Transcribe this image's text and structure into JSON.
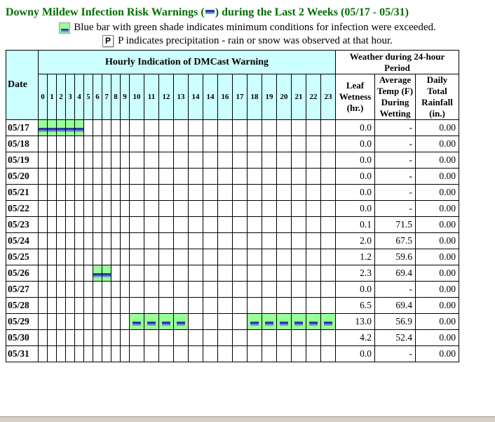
{
  "title": {
    "prefix": "Downy Mildew Infection Risk Warnings (",
    "suffix": ") during the Last 2 Weeks (05/17 - 05/31)"
  },
  "legend": [
    {
      "icon": "warning-cell",
      "text": "Blue bar with green shade indicates minimum conditions for infection were exceeded."
    },
    {
      "icon": "P",
      "text": "P indicates precipitation - rain or snow was observed at that hour."
    }
  ],
  "colors": {
    "title_green": "#007000",
    "header_cyan": "#ccffff",
    "warning_green": "#99ff99",
    "bar_blue": "#26409e"
  },
  "table": {
    "headers": {
      "date": "Date",
      "hourly": "Hourly Indication of DMCast Warning",
      "weather": "Weather during 24-hour Period",
      "leaf_wetness": "Leaf Wetness (hr.)",
      "avg_temp": "Average Temp (F) During Wetting",
      "rainfall": "Daily Total Rainfall (in.)"
    },
    "hours": [
      "0",
      "1",
      "2",
      "3",
      "4",
      "5",
      "6",
      "7",
      "8",
      "9",
      "10",
      "11",
      "12",
      "13",
      "14",
      "14",
      "16",
      "17",
      "18",
      "19",
      "20",
      "21",
      "22",
      "23"
    ],
    "rows": [
      {
        "date": "05/17",
        "warnings": [
          0,
          1,
          2,
          3,
          4
        ],
        "leaf_wetness": "0.0",
        "avg_temp": "-",
        "rainfall": "0.00"
      },
      {
        "date": "05/18",
        "warnings": [],
        "leaf_wetness": "0.0",
        "avg_temp": "-",
        "rainfall": "0.00"
      },
      {
        "date": "05/19",
        "warnings": [],
        "leaf_wetness": "0.0",
        "avg_temp": "-",
        "rainfall": "0.00"
      },
      {
        "date": "05/20",
        "warnings": [],
        "leaf_wetness": "0.0",
        "avg_temp": "-",
        "rainfall": "0.00"
      },
      {
        "date": "05/21",
        "warnings": [],
        "leaf_wetness": "0.0",
        "avg_temp": "-",
        "rainfall": "0.00"
      },
      {
        "date": "05/22",
        "warnings": [],
        "leaf_wetness": "0.0",
        "avg_temp": "-",
        "rainfall": "0.00"
      },
      {
        "date": "05/23",
        "warnings": [],
        "leaf_wetness": "0.1",
        "avg_temp": "71.5",
        "rainfall": "0.00"
      },
      {
        "date": "05/24",
        "warnings": [],
        "leaf_wetness": "2.0",
        "avg_temp": "67.5",
        "rainfall": "0.00"
      },
      {
        "date": "05/25",
        "warnings": [],
        "leaf_wetness": "1.2",
        "avg_temp": "59.6",
        "rainfall": "0.00"
      },
      {
        "date": "05/26",
        "warnings": [
          6,
          7
        ],
        "leaf_wetness": "2.3",
        "avg_temp": "69.4",
        "rainfall": "0.00"
      },
      {
        "date": "05/27",
        "warnings": [],
        "leaf_wetness": "0.0",
        "avg_temp": "-",
        "rainfall": "0.00"
      },
      {
        "date": "05/28",
        "warnings": [],
        "leaf_wetness": "6.5",
        "avg_temp": "69.4",
        "rainfall": "0.00"
      },
      {
        "date": "05/29",
        "warnings": [
          10,
          11,
          12,
          13,
          18,
          19,
          20,
          21,
          22,
          23
        ],
        "leaf_wetness": "13.0",
        "avg_temp": "56.9",
        "rainfall": "0.00"
      },
      {
        "date": "05/30",
        "warnings": [],
        "leaf_wetness": "4.2",
        "avg_temp": "52.4",
        "rainfall": "0.00"
      },
      {
        "date": "05/31",
        "warnings": [],
        "leaf_wetness": "0.0",
        "avg_temp": "-",
        "rainfall": "0.00"
      }
    ]
  }
}
